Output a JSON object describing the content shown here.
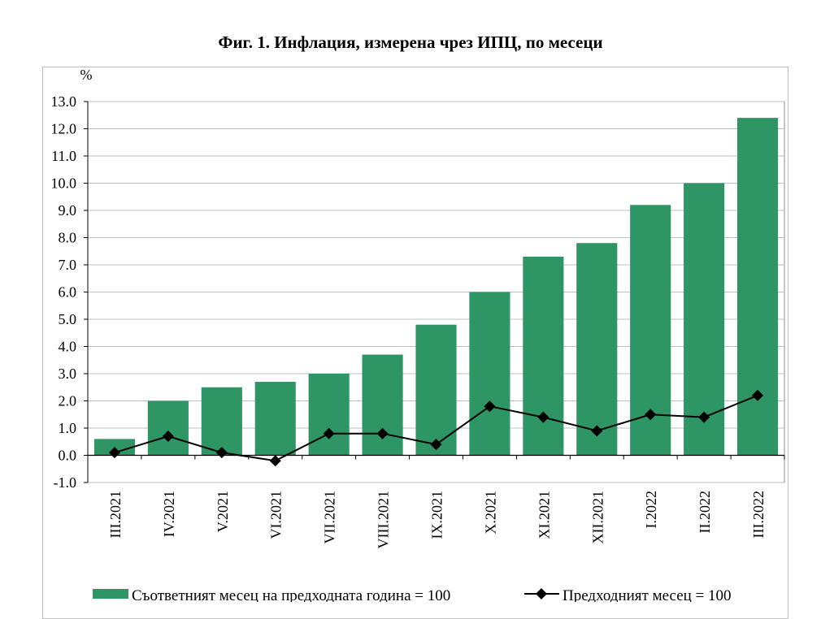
{
  "chart_data": {
    "type": "bar",
    "title": "Фиг. 1. Инфлация, измерена чрез ИПЦ, по месеци",
    "ylabel": "%",
    "xlabel": "",
    "ylim": [
      -1.0,
      13.0
    ],
    "yticks": [
      "-1.0",
      "0.0",
      "1.0",
      "2.0",
      "3.0",
      "4.0",
      "5.0",
      "6.0",
      "7.0",
      "8.0",
      "9.0",
      "10.0",
      "11.0",
      "12.0",
      "13.0"
    ],
    "grid": true,
    "legend_position": "bottom",
    "categories": [
      "III.2021",
      "IV.2021",
      "V.2021",
      "VI.2021",
      "VII.2021",
      "VIII.2021",
      "IX.2021",
      "X.2021",
      "XI.2021",
      "XII.2021",
      "I.2022",
      "II.2022",
      "III.2022"
    ],
    "series": [
      {
        "name": "Съответният месец на предходната година = 100",
        "kind": "bar",
        "color": "#2e9564",
        "values": [
          0.6,
          2.0,
          2.5,
          2.7,
          3.0,
          3.7,
          4.8,
          6.0,
          7.3,
          7.8,
          9.2,
          10.0,
          12.4
        ]
      },
      {
        "name": "Предходният месец = 100",
        "kind": "line",
        "color": "#000000",
        "marker": "diamond",
        "values": [
          0.1,
          0.7,
          0.1,
          -0.2,
          0.8,
          0.8,
          0.4,
          1.8,
          1.4,
          0.9,
          1.5,
          1.4,
          2.2
        ]
      }
    ]
  }
}
